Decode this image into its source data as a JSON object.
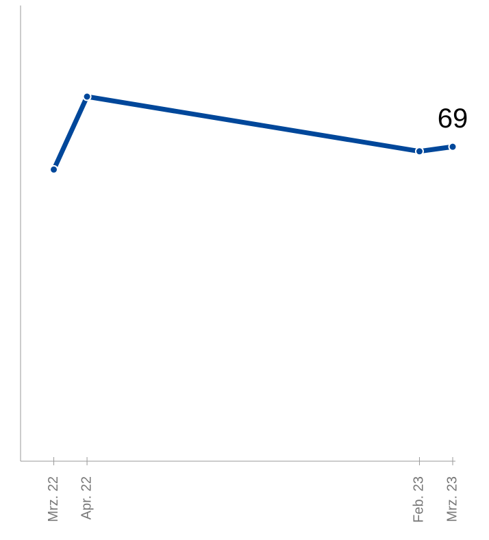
{
  "chart_data": {
    "type": "line",
    "x": [
      "2022-03",
      "2022-04",
      "2023-02",
      "2023-03"
    ],
    "series": [
      {
        "color": "#00479a",
        "values": [
          64,
          80,
          68,
          69
        ]
      }
    ],
    "xlim": [
      "2022-02",
      "2023-03"
    ],
    "xticks": [
      {
        "value": "2022-03",
        "label": "Mrz. 22"
      },
      {
        "value": "2022-04",
        "label": "Apr. 22"
      },
      {
        "value": "2023-02",
        "label": "Feb. 23"
      },
      {
        "value": "2023-03",
        "label": "Mrz. 23"
      }
    ],
    "ylim": [
      0,
      100
    ]
  }
}
